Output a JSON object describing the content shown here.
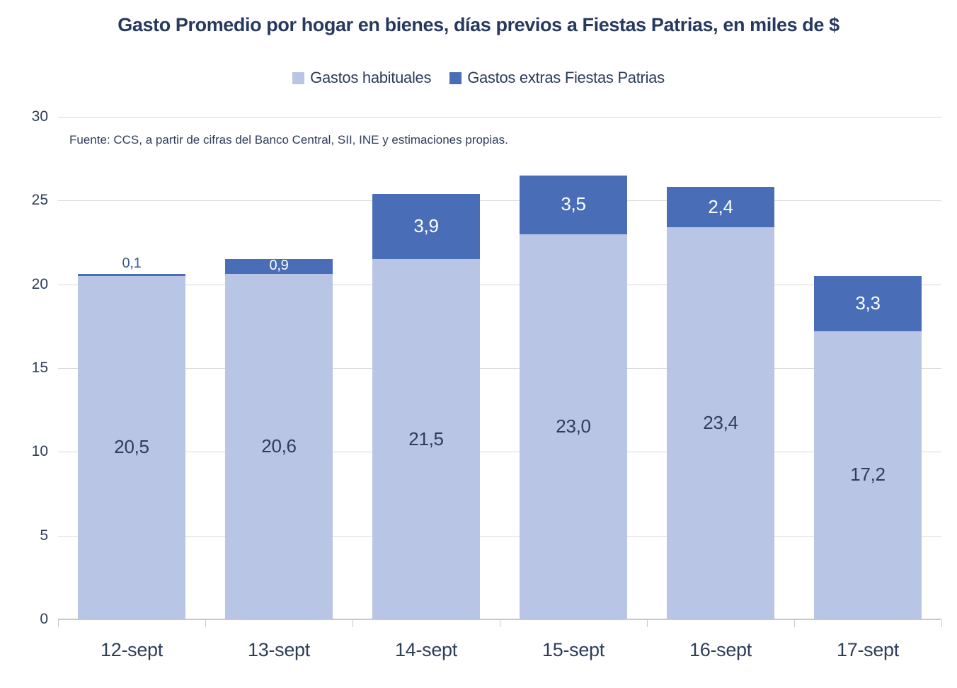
{
  "title": "Gasto Promedio por hogar en bienes, días previos a Fiestas Patrias, en miles de $",
  "source_note": "Fuente: CCS, a partir de cifras del Banco Central, SII, INE y estimaciones propias.",
  "colors": {
    "title_text": "#27395f",
    "axis_text": "#2e3d59",
    "gridline": "#d9d9d9",
    "axis_line": "#c9c9c9",
    "series_habituales": "#b8c5e4",
    "series_extras": "#4a6db8",
    "label_inside_light": "#2e3d59",
    "label_inside_dark": "#ffffff",
    "label_above_bar": "#3a5a94"
  },
  "chart_data": {
    "type": "bar",
    "stacked": true,
    "title": "Gasto Promedio por hogar en bienes, días previos a Fiestas Patrias, en miles de $",
    "categories": [
      "12-sept",
      "13-sept",
      "14-sept",
      "15-sept",
      "16-sept",
      "17-sept"
    ],
    "series": [
      {
        "name": "Gastos habituales",
        "color": "#b8c5e4",
        "values": [
          20.5,
          20.6,
          21.5,
          23.0,
          23.4,
          17.2
        ],
        "labels": [
          "20,5",
          "20,6",
          "21,5",
          "23,0",
          "23,4",
          "17,2"
        ]
      },
      {
        "name": "Gastos extras Fiestas Patrias",
        "color": "#4a6db8",
        "values": [
          0.1,
          0.9,
          3.9,
          3.5,
          2.4,
          3.3
        ],
        "labels": [
          "0,1",
          "0,9",
          "3,9",
          "3,5",
          "2,4",
          "3,3"
        ]
      }
    ],
    "totals": [
      20.6,
      21.5,
      25.4,
      26.5,
      25.8,
      20.5
    ],
    "y_axis": {
      "min": 0,
      "max": 30,
      "step": 5,
      "tick_labels": [
        "0",
        "5",
        "10",
        "15",
        "20",
        "25",
        "30"
      ]
    },
    "grid": true,
    "legend_position": "top",
    "xlabel": "",
    "ylabel": ""
  }
}
